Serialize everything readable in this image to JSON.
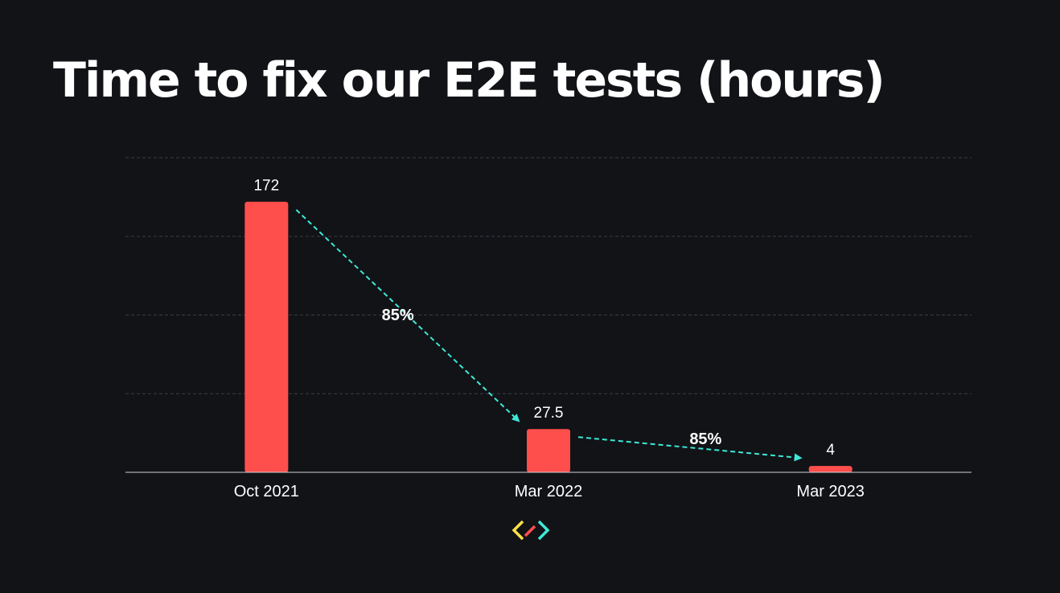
{
  "chart_data": {
    "type": "bar",
    "title": "Time to fix our E2E tests (hours)",
    "categories": [
      "Oct 2021",
      "Mar 2022",
      "Mar 2023"
    ],
    "values": [
      172,
      27.5,
      4
    ],
    "data_labels": [
      "172",
      "27.5",
      "4"
    ],
    "ylim": [
      0,
      200
    ],
    "grid": true,
    "y_axis_labels_shown": false,
    "annotations": [
      {
        "from": "Oct 2021",
        "to": "Mar 2022",
        "text": "85%"
      },
      {
        "from": "Mar 2022",
        "to": "Mar 2023",
        "text": "85%"
      }
    ],
    "colors": {
      "bar": "#ff4f4c",
      "arrow": "#3ee8d6",
      "background": "#111317",
      "text": "#ffffff",
      "grid": "#3a3d42"
    }
  },
  "logo": {
    "icon": "code-brackets-logo",
    "colors": [
      "#ffe046",
      "#ff4f4c",
      "#3ee8d6"
    ]
  }
}
